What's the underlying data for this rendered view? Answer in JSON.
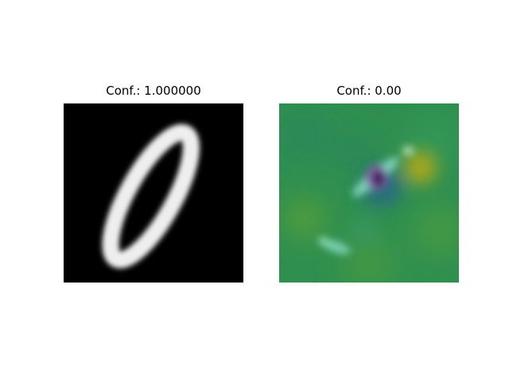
{
  "panels": [
    {
      "title": "Conf.: 1.000000",
      "image": "mnist-digit-zero-grayscale"
    },
    {
      "title": "Conf.: 0.00",
      "image": "attribution-heatmap-viridis"
    }
  ],
  "colors": {
    "background": "#ffffff",
    "digit_background": "#000000",
    "digit_stroke": "#ffffff",
    "heatmap_base": "#2f8f4f",
    "heatmap_light": "#7fd6b8",
    "heatmap_dark": "#3b1a5a",
    "heatmap_yellow": "#a7a71c"
  }
}
